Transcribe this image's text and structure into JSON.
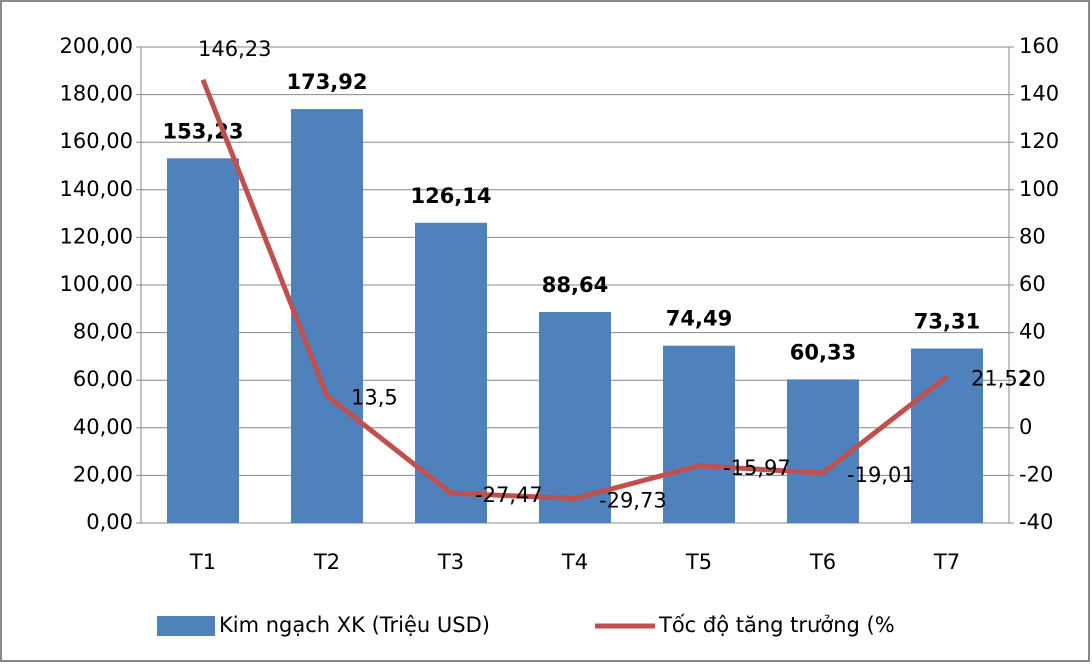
{
  "chart_data": {
    "type": "bar",
    "categories": [
      "T1",
      "T2",
      "T3",
      "T4",
      "T5",
      "T6",
      "T7"
    ],
    "series": [
      {
        "name": "Kim ngạch XK (Triệu USD)",
        "type": "bar",
        "color": "#4f81bd",
        "values": [
          153.23,
          173.92,
          126.14,
          88.64,
          74.49,
          60.33,
          73.31
        ],
        "value_labels": [
          "153,23",
          "173,92",
          "126,14",
          "88,64",
          "74,49",
          "60,33",
          "73,31"
        ]
      },
      {
        "name": "Tốc độ tăng trưởng (%",
        "type": "line",
        "axis": "y2",
        "color": "#c0504d",
        "values": [
          146.23,
          13.5,
          -27.47,
          -29.73,
          -15.97,
          -19.01,
          21.52
        ],
        "value_labels": [
          "146,23",
          "13,5",
          "-27,47",
          "-29,73",
          "-15,97",
          "-19,01",
          "21,52"
        ]
      }
    ],
    "ylim": [
      0,
      200
    ],
    "yticks": [
      {
        "value": 0,
        "label": "0,00"
      },
      {
        "value": 20,
        "label": "20,00"
      },
      {
        "value": 40,
        "label": "40,00"
      },
      {
        "value": 60,
        "label": "60,00"
      },
      {
        "value": 80,
        "label": "80,00"
      },
      {
        "value": 100,
        "label": "100,00"
      },
      {
        "value": 120,
        "label": "120,00"
      },
      {
        "value": 140,
        "label": "140,00"
      },
      {
        "value": 160,
        "label": "160,00"
      },
      {
        "value": 180,
        "label": "180,00"
      },
      {
        "value": 200,
        "label": "200,00"
      }
    ],
    "y2lim": [
      -40,
      160
    ],
    "y2ticks": [
      -40,
      -20,
      0,
      20,
      40,
      60,
      80,
      100,
      120,
      140,
      160
    ],
    "grid": true,
    "legend": "bottom"
  }
}
